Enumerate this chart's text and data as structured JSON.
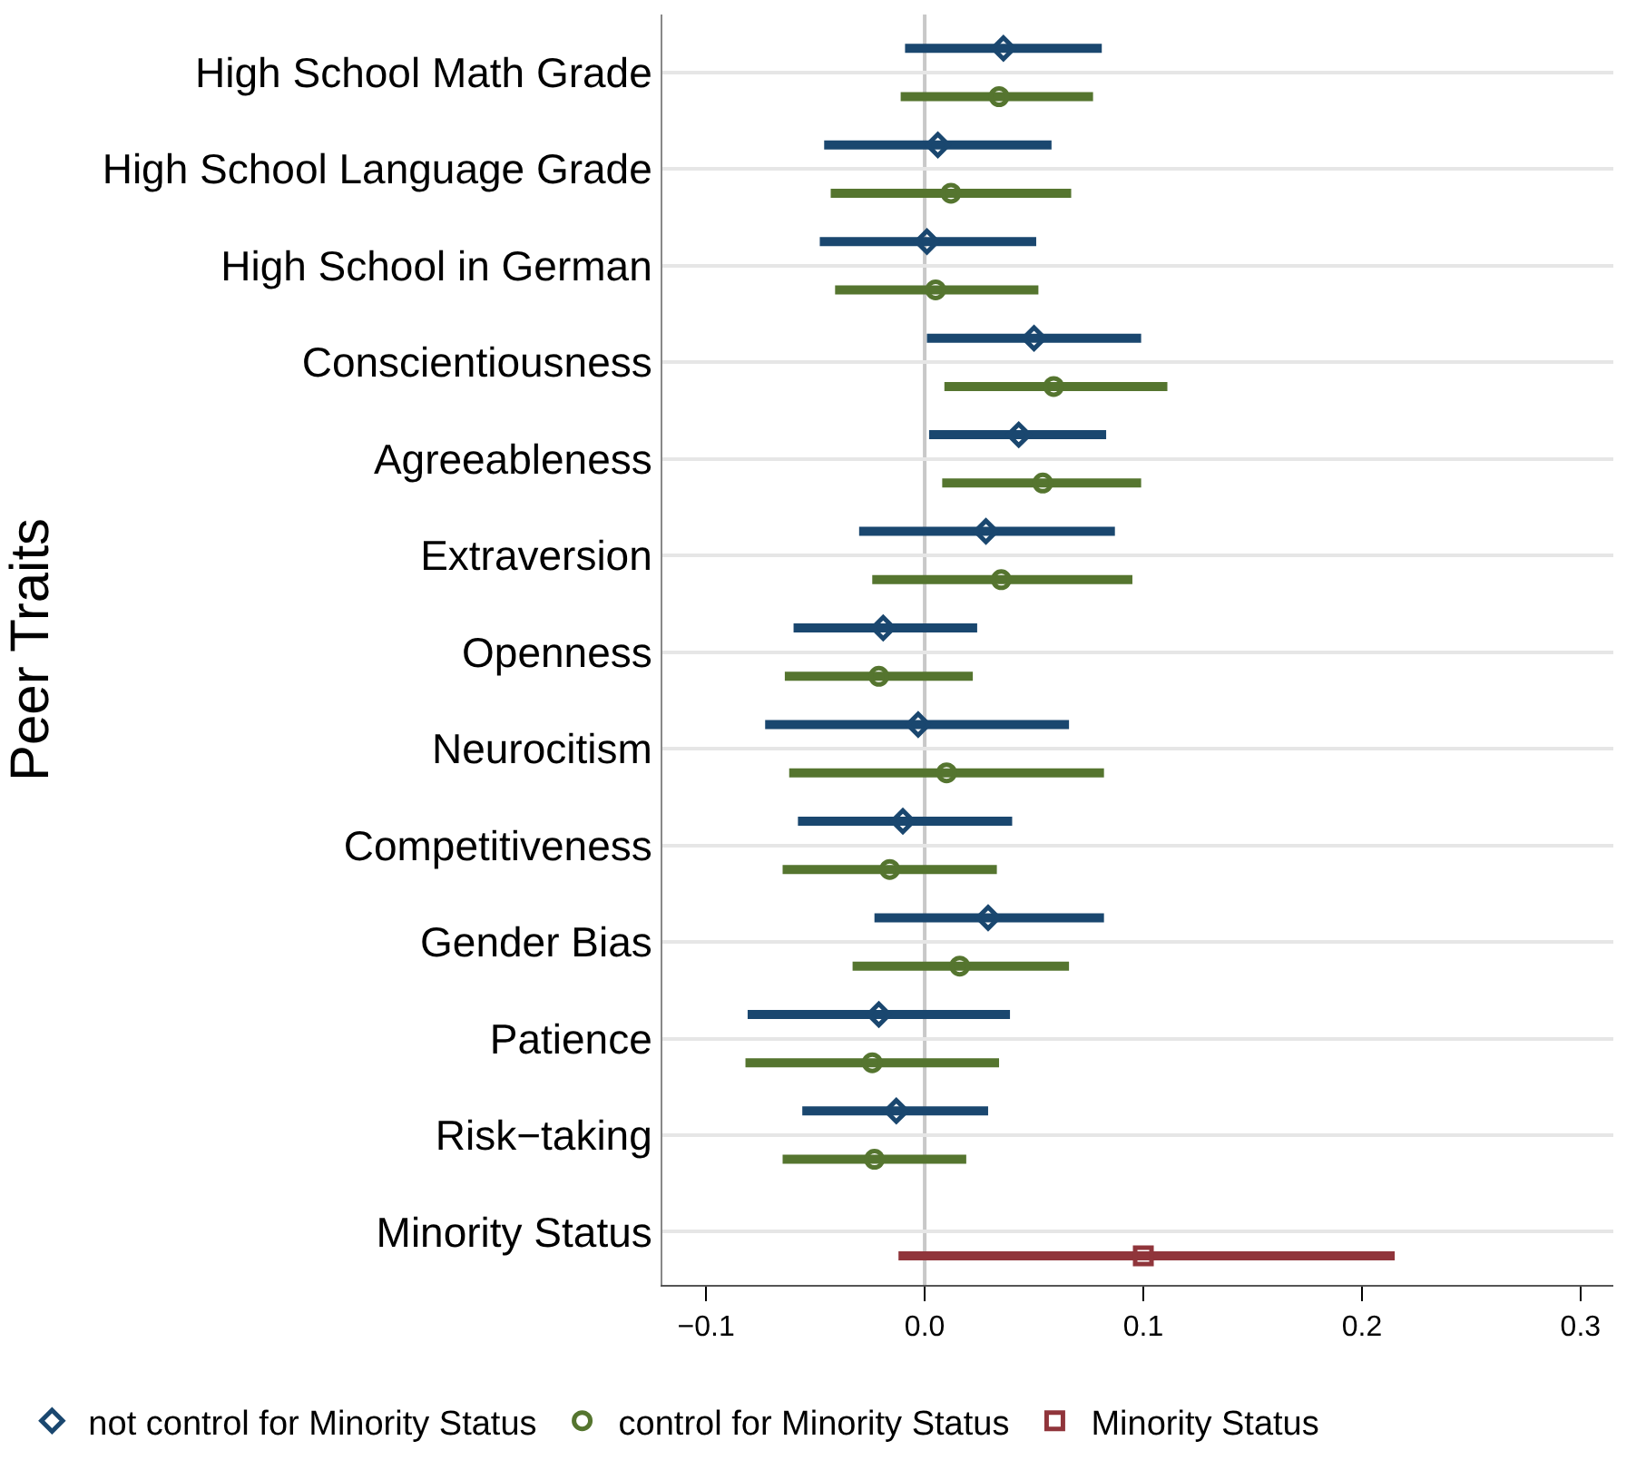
{
  "chart_data": {
    "type": "scatter",
    "orientation": "horizontal",
    "ylabel": "Peer Traits",
    "categories": [
      "High School Math Grade",
      "High School Language Grade",
      "High School in German",
      "Conscientiousness",
      "Agreeableness",
      "Extraversion",
      "Openness",
      "Neurocitism",
      "Competitiveness",
      "Gender Bias",
      "Patience",
      "Risk−taking",
      "Minority Status"
    ],
    "series": [
      {
        "name": "not control for Minority Status",
        "color": "#1a476f",
        "marker": "diamond",
        "values": [
          0.036,
          0.006,
          0.001,
          0.05,
          0.043,
          0.028,
          -0.019,
          -0.003,
          -0.01,
          0.029,
          -0.021,
          -0.013,
          null
        ],
        "errors": [
          [
            -0.009,
            0.081
          ],
          [
            -0.046,
            0.058
          ],
          [
            -0.048,
            0.051
          ],
          [
            0.001,
            0.099
          ],
          [
            0.002,
            0.083
          ],
          [
            -0.03,
            0.087
          ],
          [
            -0.06,
            0.024
          ],
          [
            -0.073,
            0.066
          ],
          [
            -0.058,
            0.04
          ],
          [
            -0.023,
            0.082
          ],
          [
            -0.081,
            0.039
          ],
          [
            -0.056,
            0.029
          ],
          null
        ]
      },
      {
        "name": "control for Minority Status",
        "color": "#55752f",
        "marker": "circle",
        "values": [
          0.034,
          0.012,
          0.005,
          0.059,
          0.054,
          0.035,
          -0.021,
          0.01,
          -0.016,
          0.016,
          -0.024,
          -0.023,
          null
        ],
        "errors": [
          [
            -0.011,
            0.077
          ],
          [
            -0.043,
            0.067
          ],
          [
            -0.041,
            0.052
          ],
          [
            0.009,
            0.111
          ],
          [
            0.008,
            0.099
          ],
          [
            -0.024,
            0.095
          ],
          [
            -0.064,
            0.022
          ],
          [
            -0.062,
            0.082
          ],
          [
            -0.065,
            0.033
          ],
          [
            -0.033,
            0.066
          ],
          [
            -0.082,
            0.034
          ],
          [
            -0.065,
            0.019
          ],
          null
        ]
      },
      {
        "name": "Minority Status",
        "color": "#90353b",
        "marker": "square",
        "values": [
          null,
          null,
          null,
          null,
          null,
          null,
          null,
          null,
          null,
          null,
          null,
          null,
          0.1
        ],
        "errors": [
          null,
          null,
          null,
          null,
          null,
          null,
          null,
          null,
          null,
          null,
          null,
          null,
          [
            -0.012,
            0.215
          ]
        ]
      }
    ],
    "xlim": [
      -0.12,
      0.315
    ],
    "xticks": [
      {
        "value": -0.1,
        "label": "−0.1"
      },
      {
        "value": 0,
        "label": "0.0"
      },
      0.1,
      0.2,
      0.3
    ],
    "ref_lines": [
      {
        "axis": "x",
        "value": 0,
        "color": "#c8c8c8"
      }
    ],
    "grid": "y",
    "legend": "bottom"
  }
}
